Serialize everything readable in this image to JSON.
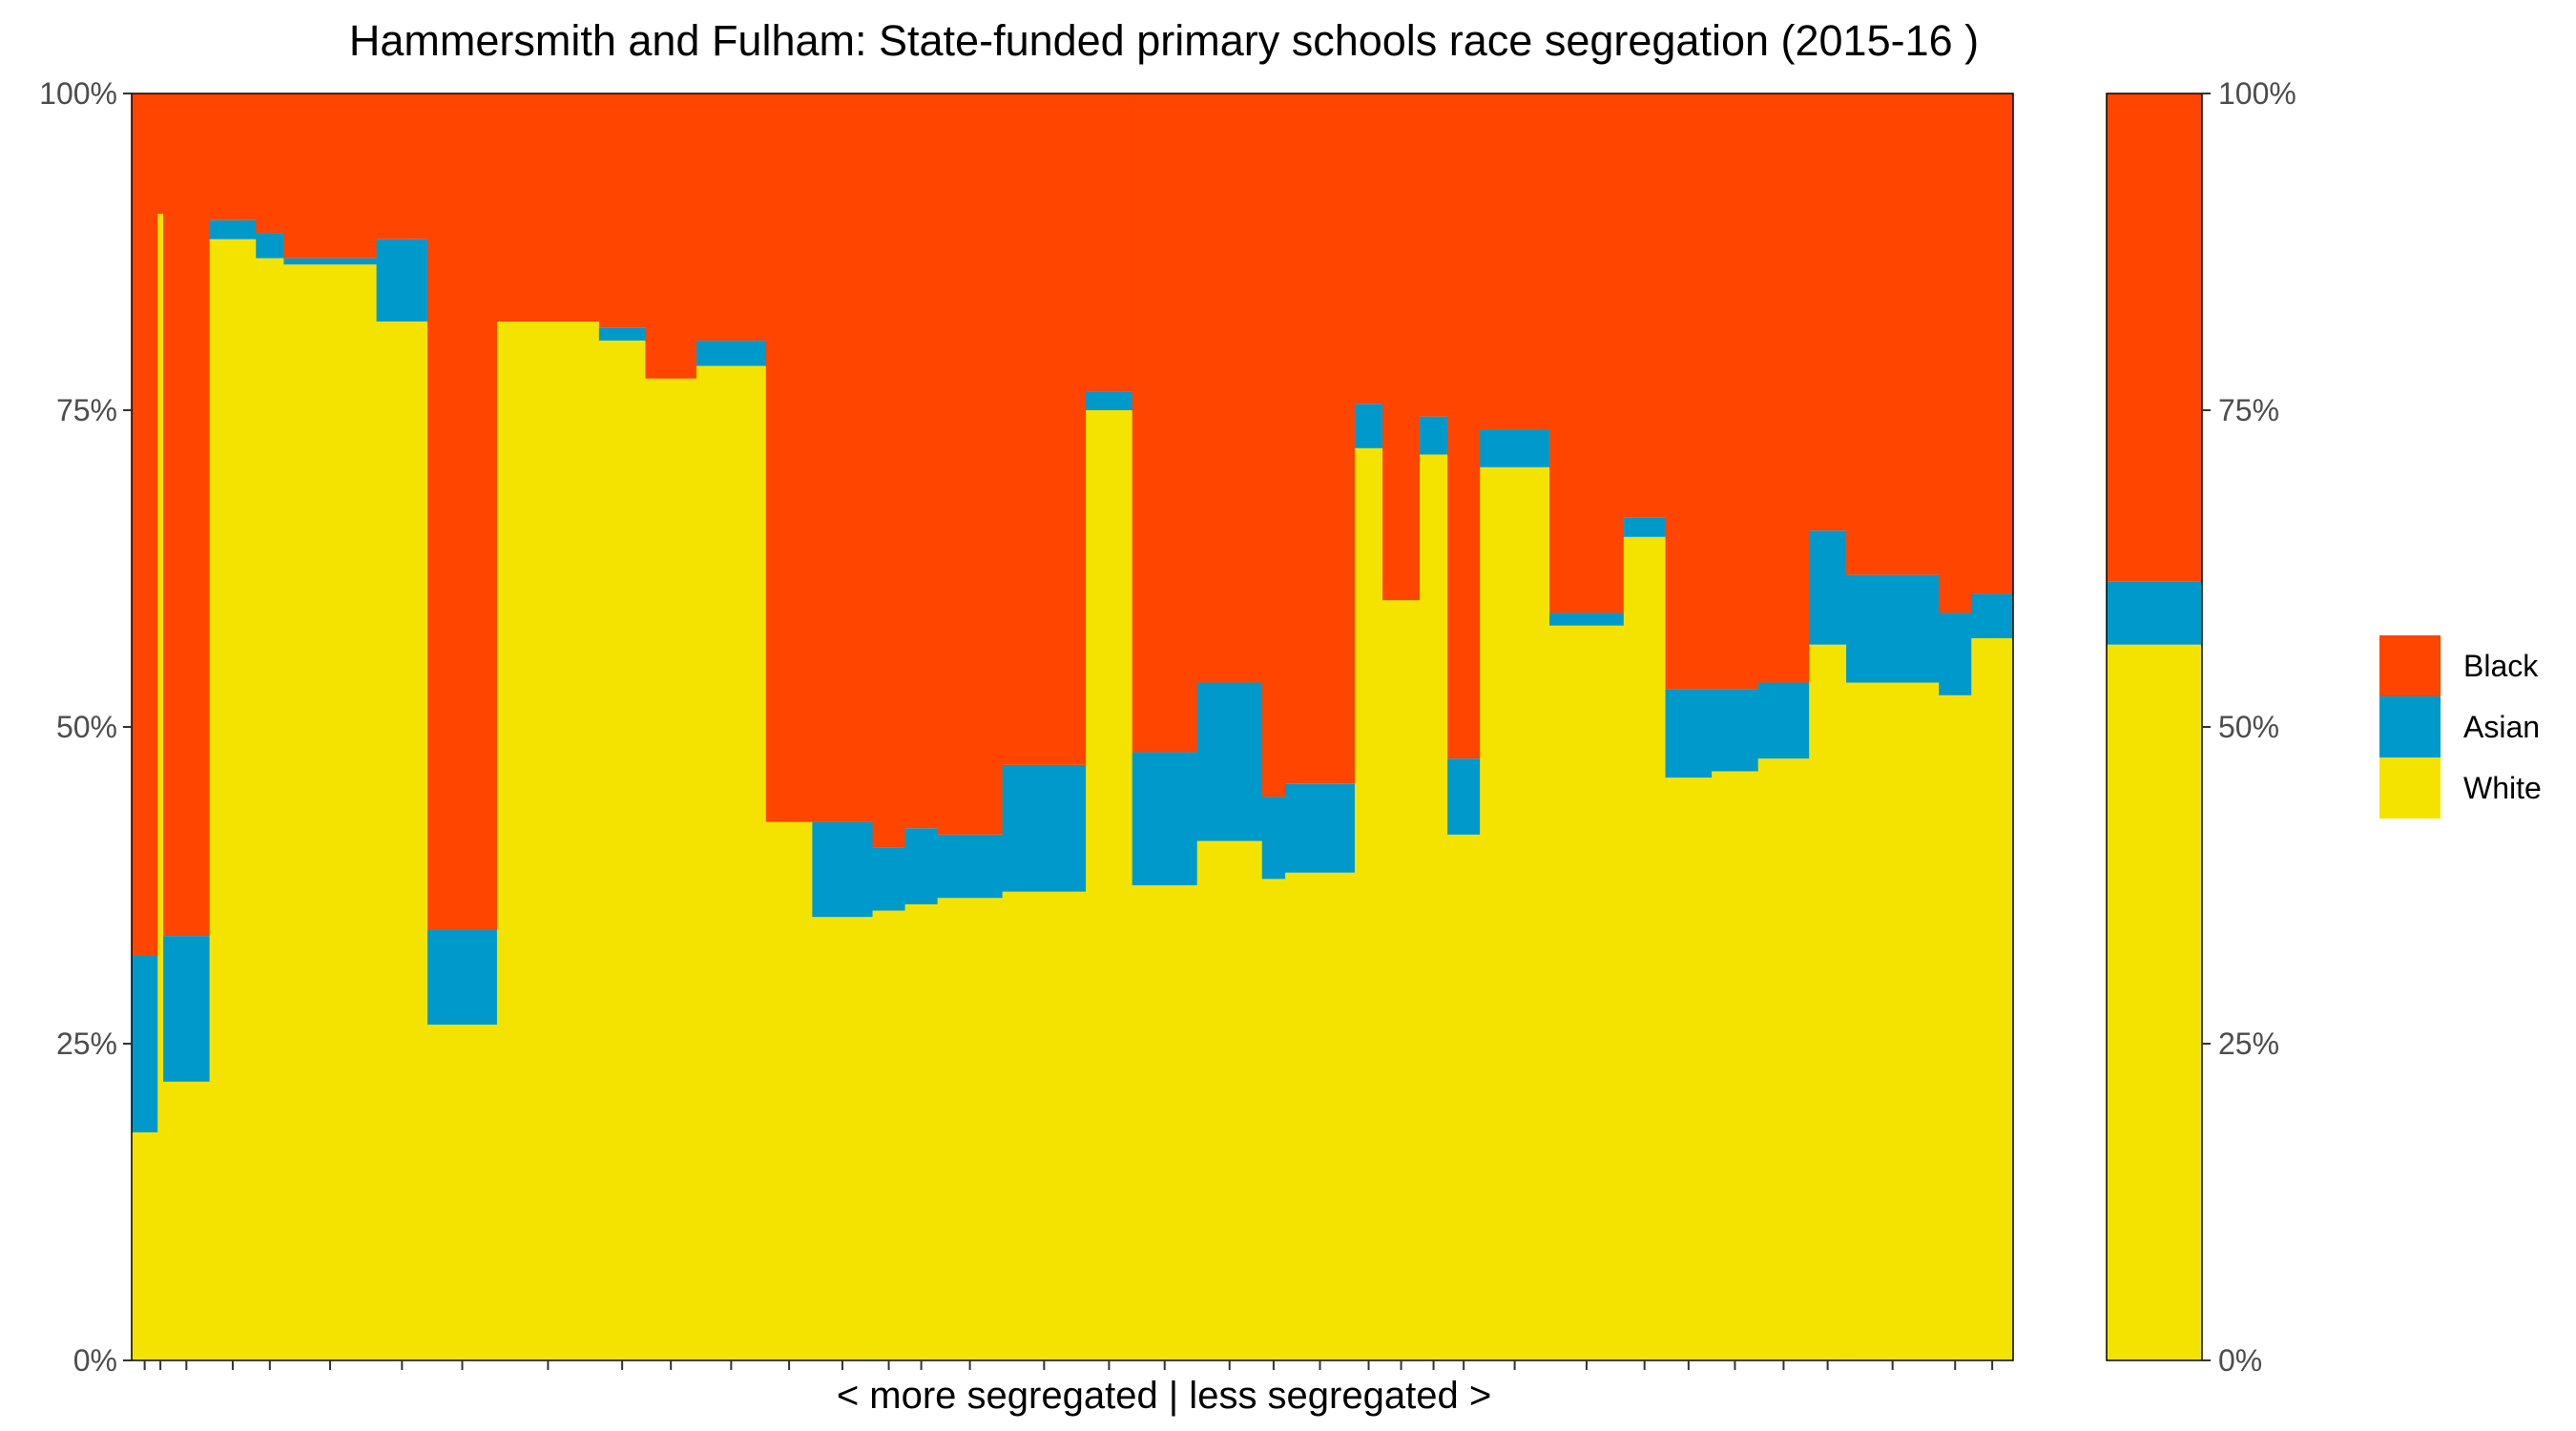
{
  "chart_data": {
    "type": "bar",
    "title": "Hammersmith and Fulham: State-funded primary schools race segregation (2015-16 )",
    "xlabel": "< more segregated | less segregated >",
    "ylabel": "",
    "ylim": [
      0,
      100
    ],
    "y_ticks": [
      "0%",
      "25%",
      "50%",
      "75%",
      "100%"
    ],
    "stack_order": [
      "White",
      "Asian",
      "Black"
    ],
    "colors": {
      "White": "#f4e300",
      "Asian": "#0099cc",
      "Black": "#ff4500"
    },
    "legend": [
      "Black",
      "Asian",
      "White"
    ],
    "legend_position": "right",
    "schools": [
      {
        "width": 2.8,
        "white": 18,
        "asian": 14,
        "black": 68
      },
      {
        "width": 0.6,
        "white": 90.5,
        "asian": 0,
        "black": 9.5
      },
      {
        "width": 5.0,
        "white": 22,
        "asian": 11.5,
        "black": 66.5
      },
      {
        "width": 5.0,
        "white": 88.5,
        "asian": 1.5,
        "black": 10
      },
      {
        "width": 3.0,
        "white": 87,
        "asian": 2,
        "black": 11
      },
      {
        "width": 10.0,
        "white": 86.5,
        "asian": 0.5,
        "black": 13
      },
      {
        "width": 5.5,
        "white": 82,
        "asian": 6.5,
        "black": 11.5
      },
      {
        "width": 7.5,
        "white": 26.5,
        "asian": 7.5,
        "black": 66
      },
      {
        "width": 11.0,
        "white": 82,
        "asian": 0,
        "black": 18
      },
      {
        "width": 5.0,
        "white": 80.5,
        "asian": 1,
        "black": 18.5
      },
      {
        "width": 5.5,
        "white": 77.5,
        "asian": 0,
        "black": 22.5
      },
      {
        "width": 7.5,
        "white": 78.5,
        "asian": 2,
        "black": 19.5
      },
      {
        "width": 5.0,
        "white": 42.5,
        "asian": 0,
        "black": 57.5
      },
      {
        "width": 6.5,
        "white": 35,
        "asian": 7.5,
        "black": 57.5
      },
      {
        "width": 3.5,
        "white": 35.5,
        "asian": 5,
        "black": 59.5
      },
      {
        "width": 3.5,
        "white": 36,
        "asian": 6,
        "black": 58
      },
      {
        "width": 7.0,
        "white": 36.5,
        "asian": 5,
        "black": 58.5
      },
      {
        "width": 9.0,
        "white": 37,
        "asian": 10,
        "black": 53
      },
      {
        "width": 5.0,
        "white": 75,
        "asian": 1.5,
        "black": 23.5
      },
      {
        "width": 7.0,
        "white": 37.5,
        "asian": 10.5,
        "black": 52
      },
      {
        "width": 7.0,
        "white": 41,
        "asian": 12.5,
        "black": 46.5
      },
      {
        "width": 2.5,
        "white": 38,
        "asian": 6.5,
        "black": 55.5
      },
      {
        "width": 7.5,
        "white": 38.5,
        "asian": 7,
        "black": 54.5
      },
      {
        "width": 3.0,
        "white": 72,
        "asian": 3.5,
        "black": 24.5
      },
      {
        "width": 4.0,
        "white": 60,
        "asian": 0,
        "black": 40
      },
      {
        "width": 3.0,
        "white": 71.5,
        "asian": 3,
        "black": 25.5
      },
      {
        "width": 3.5,
        "white": 41.5,
        "asian": 6,
        "black": 52.5
      },
      {
        "width": 7.5,
        "white": 70.5,
        "asian": 3,
        "black": 26.5
      },
      {
        "width": 8.0,
        "white": 58,
        "asian": 1,
        "black": 41
      },
      {
        "width": 4.5,
        "white": 65,
        "asian": 1.5,
        "black": 33.5
      },
      {
        "width": 5.0,
        "white": 46,
        "asian": 7,
        "black": 47
      },
      {
        "width": 5.0,
        "white": 46.5,
        "asian": 6.5,
        "black": 47
      },
      {
        "width": 5.5,
        "white": 47.5,
        "asian": 6,
        "black": 46.5
      },
      {
        "width": 4.0,
        "white": 56.5,
        "asian": 9,
        "black": 34.5
      },
      {
        "width": 10.0,
        "white": 53.5,
        "asian": 8.5,
        "black": 38
      },
      {
        "width": 3.5,
        "white": 52.5,
        "asian": 6.5,
        "black": 41
      },
      {
        "width": 4.5,
        "white": 57,
        "asian": 3.5,
        "black": 39.5
      }
    ],
    "overall": {
      "white": 56.5,
      "asian": 5,
      "black": 38.5
    }
  }
}
